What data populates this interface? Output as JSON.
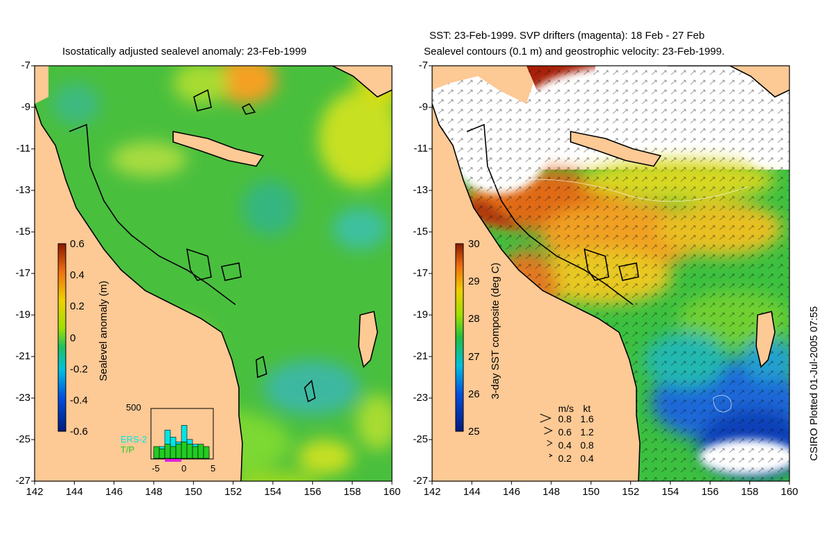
{
  "left_panel": {
    "title": "Isostatically adjusted sealevel anomaly: 23-Feb-1999",
    "colorbar": {
      "label": "Sealevel anomaly (m)",
      "ticks": [
        "0.6",
        "0.4",
        "0.2",
        "0",
        "-0.2",
        "-0.4",
        "-0.6"
      ],
      "min": -0.6,
      "max": 0.6
    },
    "inset": {
      "ymax_label": "500",
      "legend_ers2": "ERS-2",
      "legend_tp": "T/P",
      "x_ticks": [
        "-5",
        "0",
        "5"
      ],
      "ers2_color": "#00e5e5",
      "tp_color": "#22cc22",
      "bars_ers2": [
        0.15,
        0.25,
        0.6,
        0.45,
        0.35,
        0.7,
        0.4,
        0.3,
        0.25,
        0.15
      ],
      "bars_tp": [
        0.25,
        0.2,
        0.3,
        0.25,
        0.3,
        0.35,
        0.3,
        0.25,
        0.3,
        0.25
      ]
    }
  },
  "right_panel": {
    "title_line1": "SST: 23-Feb-1999. SVP drifters (magenta): 18 Feb - 27 Feb",
    "title_line2": "Sealevel contours (0.1 m) and geostrophic velocity: 23-Feb-1999.",
    "colorbar": {
      "label": "3-day SST composite (deg C)",
      "ticks": [
        "30",
        "29",
        "28",
        "27",
        "26",
        "25"
      ],
      "min": 25,
      "max": 30
    },
    "velocity_legend": {
      "header_ms": "m/s",
      "header_kt": "kt",
      "rows": [
        {
          "ms": "0.8",
          "kt": "1.6"
        },
        {
          "ms": "0.6",
          "kt": "1.2"
        },
        {
          "ms": "0.4",
          "kt": "0.8"
        },
        {
          "ms": "0.2",
          "kt": "0.4"
        }
      ]
    }
  },
  "axes": {
    "lat_ticks": [
      "-7",
      "-9",
      "-11",
      "-13",
      "-15",
      "-17",
      "-19",
      "-21",
      "-23",
      "-25",
      "-27"
    ],
    "lon_ticks": [
      "142",
      "144",
      "146",
      "148",
      "150",
      "152",
      "154",
      "156",
      "158",
      "160"
    ]
  },
  "credit": "CSIRO Plotted 01-Jul-2005 07:55",
  "colors": {
    "land": "#fdc995",
    "sla_base": "#49bf3e",
    "sst_warm": "#d0641a",
    "sst_cold": "#1a50c8",
    "coast": "#000000"
  }
}
